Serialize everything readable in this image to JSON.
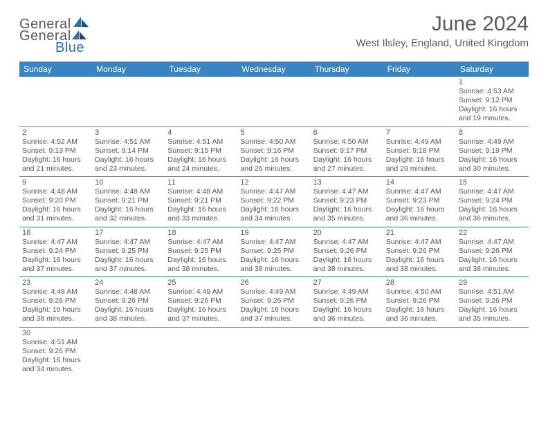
{
  "logo": {
    "general": "General",
    "blue": "Blue"
  },
  "title": "June 2024",
  "location": "West Ilsley, England, United Kingdom",
  "colors": {
    "header_bg": "#3b84c4",
    "header_fg": "#ffffff",
    "cell_border": "#3b84c4",
    "text": "#555555",
    "logo_gray": "#5a5a5a",
    "logo_blue": "#2f6fb3"
  },
  "weekdays": [
    "Sunday",
    "Monday",
    "Tuesday",
    "Wednesday",
    "Thursday",
    "Friday",
    "Saturday"
  ],
  "weeks": [
    [
      null,
      null,
      null,
      null,
      null,
      null,
      {
        "d": "1",
        "l1": "Sunrise: 4:53 AM",
        "l2": "Sunset: 9:12 PM",
        "l3": "Daylight: 16 hours",
        "l4": "and 19 minutes."
      }
    ],
    [
      {
        "d": "2",
        "l1": "Sunrise: 4:52 AM",
        "l2": "Sunset: 9:13 PM",
        "l3": "Daylight: 16 hours",
        "l4": "and 21 minutes."
      },
      {
        "d": "3",
        "l1": "Sunrise: 4:51 AM",
        "l2": "Sunset: 9:14 PM",
        "l3": "Daylight: 16 hours",
        "l4": "and 23 minutes."
      },
      {
        "d": "4",
        "l1": "Sunrise: 4:51 AM",
        "l2": "Sunset: 9:15 PM",
        "l3": "Daylight: 16 hours",
        "l4": "and 24 minutes."
      },
      {
        "d": "5",
        "l1": "Sunrise: 4:50 AM",
        "l2": "Sunset: 9:16 PM",
        "l3": "Daylight: 16 hours",
        "l4": "and 26 minutes."
      },
      {
        "d": "6",
        "l1": "Sunrise: 4:50 AM",
        "l2": "Sunset: 9:17 PM",
        "l3": "Daylight: 16 hours",
        "l4": "and 27 minutes."
      },
      {
        "d": "7",
        "l1": "Sunrise: 4:49 AM",
        "l2": "Sunset: 9:18 PM",
        "l3": "Daylight: 16 hours",
        "l4": "and 29 minutes."
      },
      {
        "d": "8",
        "l1": "Sunrise: 4:49 AM",
        "l2": "Sunset: 9:19 PM",
        "l3": "Daylight: 16 hours",
        "l4": "and 30 minutes."
      }
    ],
    [
      {
        "d": "9",
        "l1": "Sunrise: 4:48 AM",
        "l2": "Sunset: 9:20 PM",
        "l3": "Daylight: 16 hours",
        "l4": "and 31 minutes."
      },
      {
        "d": "10",
        "l1": "Sunrise: 4:48 AM",
        "l2": "Sunset: 9:21 PM",
        "l3": "Daylight: 16 hours",
        "l4": "and 32 minutes."
      },
      {
        "d": "11",
        "l1": "Sunrise: 4:48 AM",
        "l2": "Sunset: 9:21 PM",
        "l3": "Daylight: 16 hours",
        "l4": "and 33 minutes."
      },
      {
        "d": "12",
        "l1": "Sunrise: 4:47 AM",
        "l2": "Sunset: 9:22 PM",
        "l3": "Daylight: 16 hours",
        "l4": "and 34 minutes."
      },
      {
        "d": "13",
        "l1": "Sunrise: 4:47 AM",
        "l2": "Sunset: 9:23 PM",
        "l3": "Daylight: 16 hours",
        "l4": "and 35 minutes."
      },
      {
        "d": "14",
        "l1": "Sunrise: 4:47 AM",
        "l2": "Sunset: 9:23 PM",
        "l3": "Daylight: 16 hours",
        "l4": "and 36 minutes."
      },
      {
        "d": "15",
        "l1": "Sunrise: 4:47 AM",
        "l2": "Sunset: 9:24 PM",
        "l3": "Daylight: 16 hours",
        "l4": "and 36 minutes."
      }
    ],
    [
      {
        "d": "16",
        "l1": "Sunrise: 4:47 AM",
        "l2": "Sunset: 9:24 PM",
        "l3": "Daylight: 16 hours",
        "l4": "and 37 minutes."
      },
      {
        "d": "17",
        "l1": "Sunrise: 4:47 AM",
        "l2": "Sunset: 9:25 PM",
        "l3": "Daylight: 16 hours",
        "l4": "and 37 minutes."
      },
      {
        "d": "18",
        "l1": "Sunrise: 4:47 AM",
        "l2": "Sunset: 9:25 PM",
        "l3": "Daylight: 16 hours",
        "l4": "and 38 minutes."
      },
      {
        "d": "19",
        "l1": "Sunrise: 4:47 AM",
        "l2": "Sunset: 9:25 PM",
        "l3": "Daylight: 16 hours",
        "l4": "and 38 minutes."
      },
      {
        "d": "20",
        "l1": "Sunrise: 4:47 AM",
        "l2": "Sunset: 9:26 PM",
        "l3": "Daylight: 16 hours",
        "l4": "and 38 minutes."
      },
      {
        "d": "21",
        "l1": "Sunrise: 4:47 AM",
        "l2": "Sunset: 9:26 PM",
        "l3": "Daylight: 16 hours",
        "l4": "and 38 minutes."
      },
      {
        "d": "22",
        "l1": "Sunrise: 4:47 AM",
        "l2": "Sunset: 9:26 PM",
        "l3": "Daylight: 16 hours",
        "l4": "and 38 minutes."
      }
    ],
    [
      {
        "d": "23",
        "l1": "Sunrise: 4:48 AM",
        "l2": "Sunset: 9:26 PM",
        "l3": "Daylight: 16 hours",
        "l4": "and 38 minutes."
      },
      {
        "d": "24",
        "l1": "Sunrise: 4:48 AM",
        "l2": "Sunset: 9:26 PM",
        "l3": "Daylight: 16 hours",
        "l4": "and 38 minutes."
      },
      {
        "d": "25",
        "l1": "Sunrise: 4:49 AM",
        "l2": "Sunset: 9:26 PM",
        "l3": "Daylight: 16 hours",
        "l4": "and 37 minutes."
      },
      {
        "d": "26",
        "l1": "Sunrise: 4:49 AM",
        "l2": "Sunset: 9:26 PM",
        "l3": "Daylight: 16 hours",
        "l4": "and 37 minutes."
      },
      {
        "d": "27",
        "l1": "Sunrise: 4:49 AM",
        "l2": "Sunset: 9:26 PM",
        "l3": "Daylight: 16 hours",
        "l4": "and 36 minutes."
      },
      {
        "d": "28",
        "l1": "Sunrise: 4:50 AM",
        "l2": "Sunset: 9:26 PM",
        "l3": "Daylight: 16 hours",
        "l4": "and 36 minutes."
      },
      {
        "d": "29",
        "l1": "Sunrise: 4:51 AM",
        "l2": "Sunset: 9:26 PM",
        "l3": "Daylight: 16 hours",
        "l4": "and 35 minutes."
      }
    ],
    [
      {
        "d": "30",
        "l1": "Sunrise: 4:51 AM",
        "l2": "Sunset: 9:26 PM",
        "l3": "Daylight: 16 hours",
        "l4": "and 34 minutes."
      },
      null,
      null,
      null,
      null,
      null,
      null
    ]
  ]
}
